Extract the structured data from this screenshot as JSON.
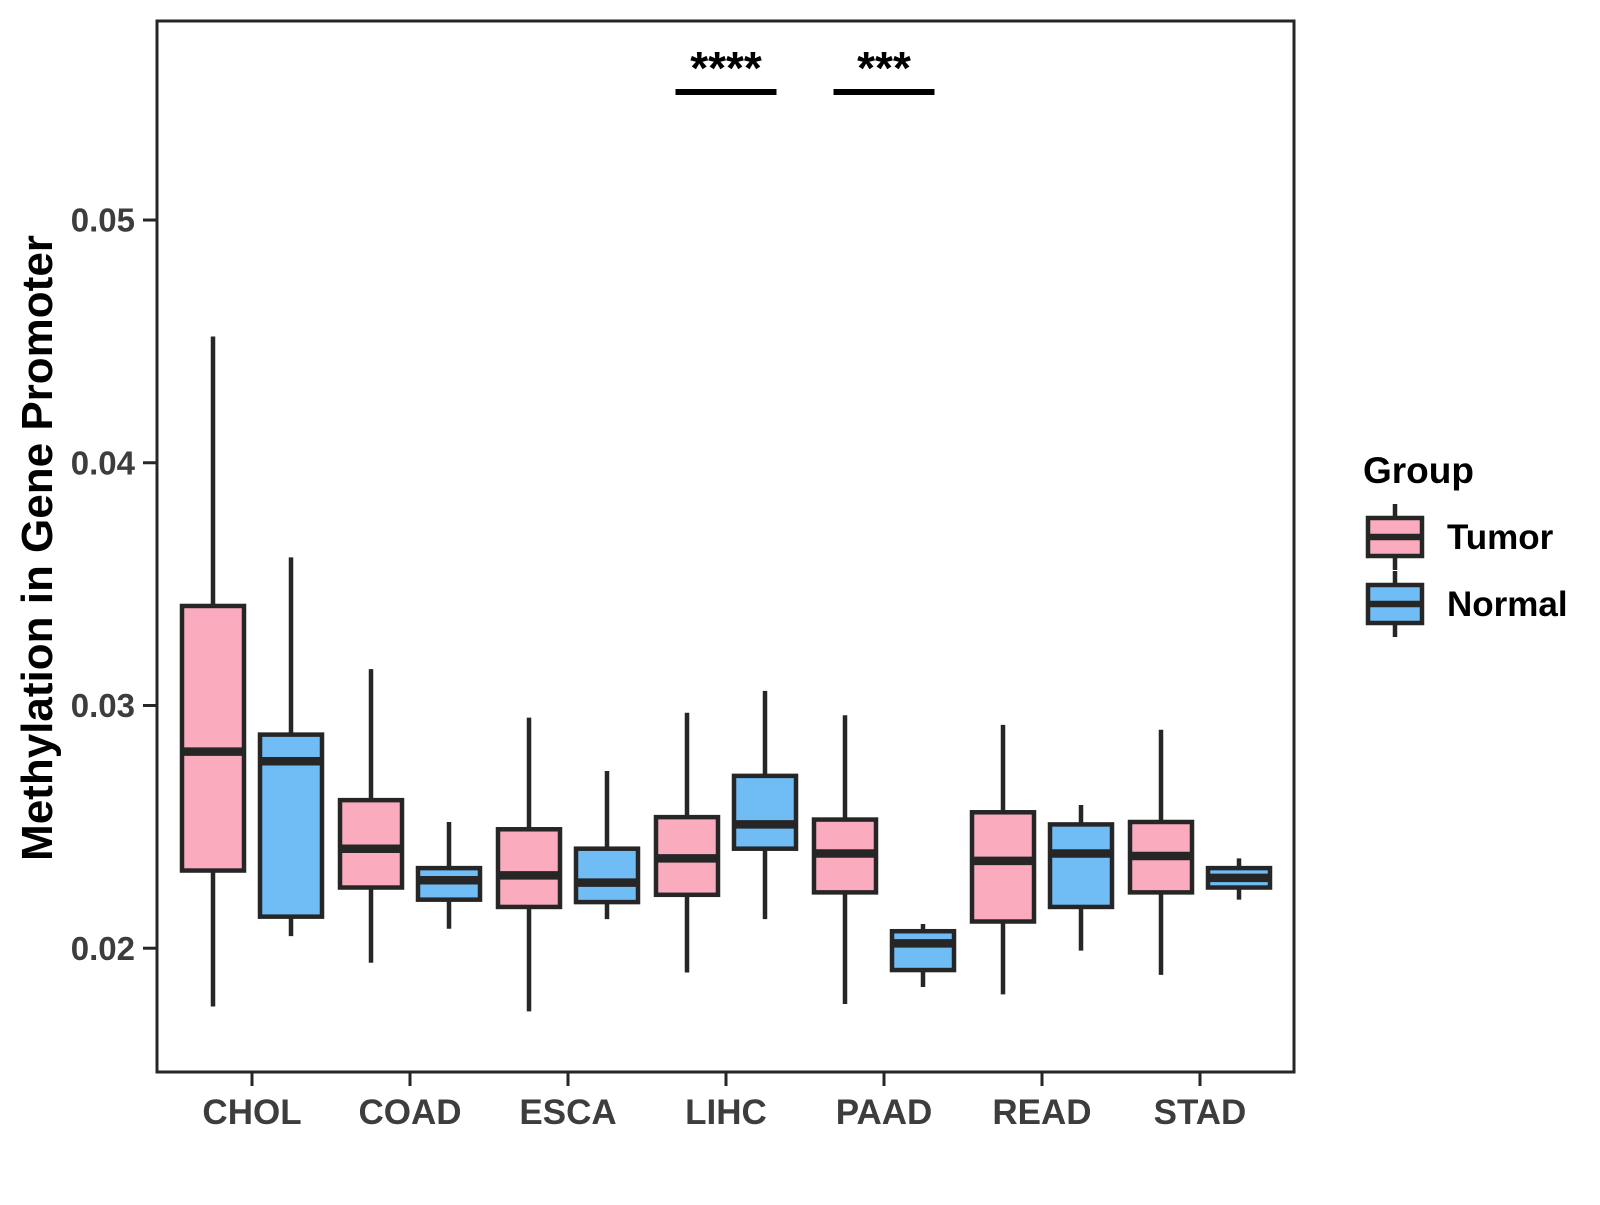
{
  "colors": {
    "tumor_fill": "#FAACBE",
    "normal_fill": "#70BDF6",
    "line": "#262626",
    "tick_label": "#3d3d3d",
    "text": "#000000",
    "background": "#FFFFFF"
  },
  "y_axis": {
    "title": "Methylation in Gene Promoter",
    "tick_labels": [
      "0.02",
      "0.03",
      "0.04",
      "0.05"
    ],
    "tick_values": [
      0.02,
      0.03,
      0.04,
      0.05
    ]
  },
  "x_axis": {
    "categories": [
      "CHOL",
      "COAD",
      "ESCA",
      "LIHC",
      "PAAD",
      "READ",
      "STAD"
    ]
  },
  "legend": {
    "title": "Group",
    "entries": [
      {
        "label": "Tumor"
      },
      {
        "label": "Normal"
      }
    ]
  },
  "chart_data": {
    "type": "boxplot",
    "title": "",
    "xlabel": "",
    "ylabel": "Methylation in Gene Promoter",
    "ylim": [
      0.0149,
      0.0582
    ],
    "grid": false,
    "legend_position": "right",
    "categories": [
      "CHOL",
      "COAD",
      "ESCA",
      "LIHC",
      "PAAD",
      "READ",
      "STAD"
    ],
    "series": [
      {
        "name": "Tumor",
        "boxes": [
          {
            "category": "CHOL",
            "whisker_low": 0.0176,
            "q1": 0.0232,
            "median": 0.0281,
            "q3": 0.0341,
            "whisker_high": 0.0452
          },
          {
            "category": "COAD",
            "whisker_low": 0.0194,
            "q1": 0.0225,
            "median": 0.0241,
            "q3": 0.0261,
            "whisker_high": 0.0315
          },
          {
            "category": "ESCA",
            "whisker_low": 0.0174,
            "q1": 0.0217,
            "median": 0.023,
            "q3": 0.0249,
            "whisker_high": 0.0295
          },
          {
            "category": "LIHC",
            "whisker_low": 0.019,
            "q1": 0.0222,
            "median": 0.0237,
            "q3": 0.0254,
            "whisker_high": 0.0297
          },
          {
            "category": "PAAD",
            "whisker_low": 0.0177,
            "q1": 0.0223,
            "median": 0.0239,
            "q3": 0.0253,
            "whisker_high": 0.0296
          },
          {
            "category": "READ",
            "whisker_low": 0.0181,
            "q1": 0.0211,
            "median": 0.0236,
            "q3": 0.0256,
            "whisker_high": 0.0292
          },
          {
            "category": "STAD",
            "whisker_low": 0.0189,
            "q1": 0.0223,
            "median": 0.0238,
            "q3": 0.0252,
            "whisker_high": 0.029
          }
        ]
      },
      {
        "name": "Normal",
        "boxes": [
          {
            "category": "CHOL",
            "whisker_low": 0.0205,
            "q1": 0.0213,
            "median": 0.0277,
            "q3": 0.0288,
            "whisker_high": 0.0361
          },
          {
            "category": "COAD",
            "whisker_low": 0.0208,
            "q1": 0.022,
            "median": 0.0228,
            "q3": 0.0233,
            "whisker_high": 0.0252
          },
          {
            "category": "ESCA",
            "whisker_low": 0.0212,
            "q1": 0.0219,
            "median": 0.0227,
            "q3": 0.0241,
            "whisker_high": 0.0273
          },
          {
            "category": "LIHC",
            "whisker_low": 0.0212,
            "q1": 0.0241,
            "median": 0.0251,
            "q3": 0.0271,
            "whisker_high": 0.0306
          },
          {
            "category": "PAAD",
            "whisker_low": 0.0184,
            "q1": 0.0191,
            "median": 0.0202,
            "q3": 0.0207,
            "whisker_high": 0.021
          },
          {
            "category": "READ",
            "whisker_low": 0.0199,
            "q1": 0.0217,
            "median": 0.0239,
            "q3": 0.0251,
            "whisker_high": 0.0259
          },
          {
            "category": "STAD",
            "whisker_low": 0.022,
            "q1": 0.0225,
            "median": 0.0229,
            "q3": 0.0233,
            "whisker_high": 0.0237
          }
        ]
      }
    ],
    "significance": [
      {
        "category": "LIHC",
        "label": "****"
      },
      {
        "category": "PAAD",
        "label": "***"
      }
    ]
  }
}
